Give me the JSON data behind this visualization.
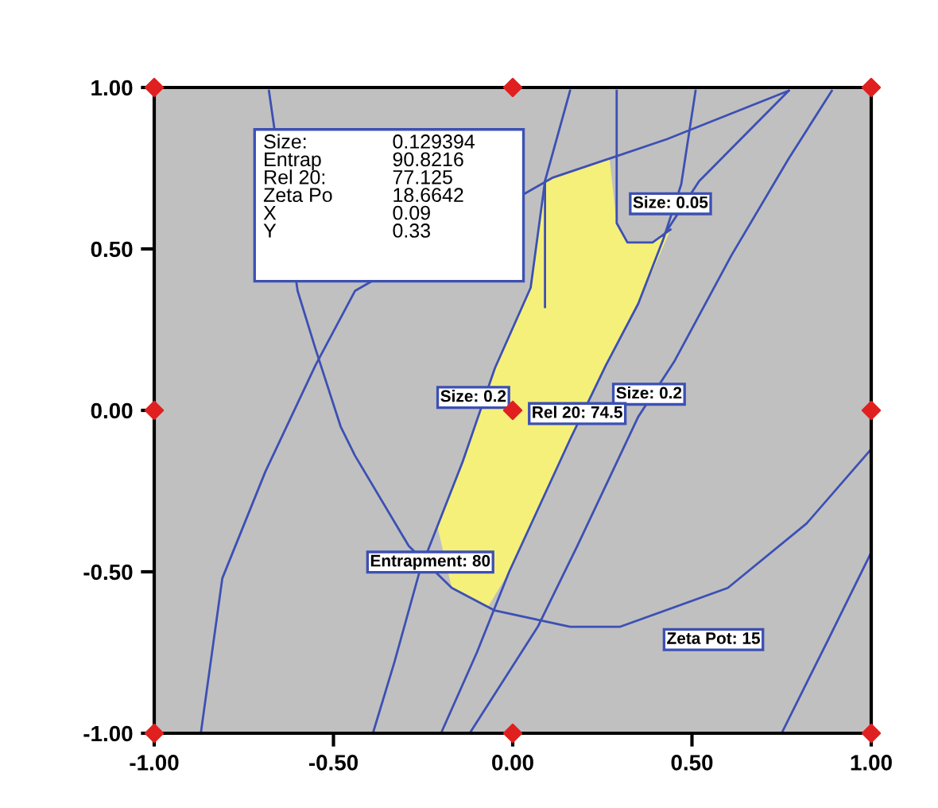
{
  "chart_data": {
    "type": "line",
    "xlim": [
      -1,
      1
    ],
    "ylim": [
      -1,
      1
    ],
    "xticks": [
      {
        "value": -1,
        "label": "-1.00"
      },
      {
        "value": -0.5,
        "label": "-0.50"
      },
      {
        "value": 0,
        "label": "0.00"
      },
      {
        "value": 0.5,
        "label": "0.50"
      },
      {
        "value": 1,
        "label": "1.00"
      }
    ],
    "yticks": [
      {
        "value": -1,
        "label": "-1.00"
      },
      {
        "value": -0.5,
        "label": "-0.50"
      },
      {
        "value": 0,
        "label": "0.00"
      },
      {
        "value": 0.5,
        "label": "0.50"
      },
      {
        "value": 1,
        "label": "1.00"
      }
    ],
    "grid": false,
    "legend": false,
    "series": [
      {
        "type": "area",
        "color": "#f5f07a",
        "x": [
          0.09,
          0.27,
          0.29,
          0.32,
          0.39,
          0.44,
          0.35,
          0.26,
          0.16,
          -0.01,
          -0.07,
          -0.17,
          -0.21,
          -0.14,
          -0.05,
          0.05
        ],
        "values": [
          0.71,
          0.78,
          0.58,
          0.52,
          0.52,
          0.56,
          0.33,
          0.14,
          -0.09,
          -0.5,
          -0.61,
          -0.55,
          -0.36,
          -0.16,
          0.13,
          0.38
        ]
      },
      {
        "color": "#3c50b4",
        "x": [
          -0.68,
          -0.6,
          -0.55,
          -0.48,
          -0.44,
          -0.29,
          -0.17,
          -0.05,
          0.16,
          0.3,
          0.6,
          0.82,
          1.0
        ],
        "values": [
          0.99,
          0.37,
          0.19,
          -0.05,
          -0.14,
          -0.42,
          -0.55,
          -0.62,
          -0.67,
          -0.67,
          -0.55,
          -0.35,
          -0.12
        ]
      },
      {
        "color": "#3c50b4",
        "x": [
          -0.87,
          -0.81,
          -0.69,
          -0.55,
          -0.44,
          0.11,
          0.43,
          0.77
        ],
        "values": [
          -1.0,
          -0.52,
          -0.19,
          0.14,
          0.37,
          0.72,
          0.84,
          0.99
        ]
      },
      {
        "color": "#3c50b4",
        "x": [
          -0.39,
          -0.33,
          -0.26,
          -0.14,
          -0.05,
          0.05,
          0.09,
          0.16
        ],
        "values": [
          -1.0,
          -0.78,
          -0.5,
          -0.16,
          0.13,
          0.38,
          0.71,
          0.99
        ]
      },
      {
        "color": "#3c50b4",
        "x": [
          -0.2,
          -0.1,
          -0.01,
          0.16,
          0.26,
          0.35,
          0.42,
          0.47,
          0.51
        ],
        "values": [
          -1.0,
          -0.75,
          -0.5,
          -0.09,
          0.14,
          0.33,
          0.53,
          0.7,
          0.99
        ]
      },
      {
        "color": "#3c50b4",
        "x": [
          0.29,
          0.29,
          0.32,
          0.39,
          0.44
        ],
        "values": [
          0.99,
          0.58,
          0.52,
          0.52,
          0.56
        ]
      },
      {
        "color": "#3c50b4",
        "x": [
          -0.12,
          0.07,
          0.18,
          0.35,
          0.45,
          0.61,
          0.77,
          0.89
        ],
        "values": [
          -1.0,
          -0.67,
          -0.42,
          -0.02,
          0.15,
          0.48,
          0.78,
          0.99
        ]
      },
      {
        "color": "#3c50b4",
        "x": [
          0.77,
          0.52,
          0.42
        ],
        "values": [
          0.99,
          0.71,
          0.54
        ]
      },
      {
        "color": "#3c50b4",
        "x": [
          0.09,
          0.09
        ],
        "values": [
          0.32,
          0.71
        ]
      },
      {
        "color": "#3c50b4",
        "x": [
          0.75,
          0.88,
          1.0
        ],
        "values": [
          -1.0,
          -0.71,
          -0.44
        ]
      },
      {
        "type": "scatter",
        "color": "#e02020",
        "marker": "diamond",
        "x": [
          -1,
          0,
          1,
          -1,
          0,
          1,
          -1,
          0,
          1
        ],
        "values": [
          1,
          1,
          1,
          0,
          0,
          0,
          -1,
          -1,
          -1
        ]
      }
    ],
    "annotations": [
      {
        "text": "Size: 0.05",
        "x": 0.44,
        "y": 0.64
      },
      {
        "text": "Size: 0.2",
        "x": 0.38,
        "y": 0.05
      },
      {
        "text": "Rel 20: 74.5",
        "x": 0.18,
        "y": -0.01
      },
      {
        "text": "Entrapment: 80",
        "x": -0.23,
        "y": -0.47
      },
      "Size: 0.2",
      "Zeta Pot: 15",
      "Size:\nEntrap\nRel 20:\nZeta Po\nX\nY",
      "0.129394\n90.8216\n77.125\n18.6642\n0.09\n0.33"
    ]
  }
}
